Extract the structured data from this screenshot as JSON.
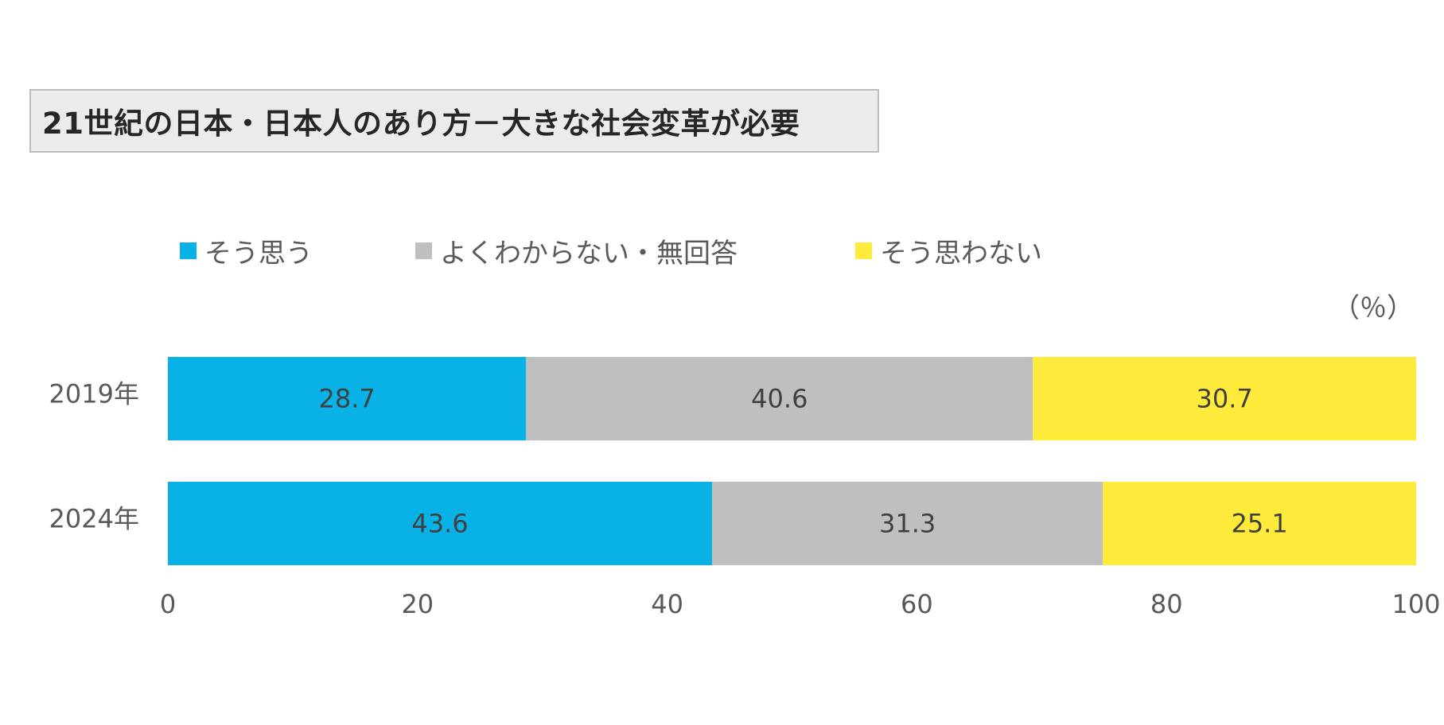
{
  "title": "21世紀の日本・日本人のあり方－大きな社会変革が必要",
  "unit": "（％）",
  "chart_data": {
    "type": "bar",
    "orientation": "horizontal",
    "stacked": true,
    "categories": [
      "2019年",
      "2024年"
    ],
    "series": [
      {
        "name": "そう思う",
        "color": "#08b2e6",
        "values": [
          28.7,
          43.6
        ]
      },
      {
        "name": "よくわからない・無回答",
        "color": "#bfbfbf",
        "values": [
          40.6,
          31.3
        ]
      },
      {
        "name": "そう思わない",
        "color": "#ffeb3c",
        "values": [
          30.7,
          25.1
        ]
      }
    ],
    "xlim": [
      0,
      100
    ],
    "xticks": [
      0,
      20,
      40,
      60,
      80,
      100
    ],
    "legend_position": "top",
    "grid": false
  }
}
